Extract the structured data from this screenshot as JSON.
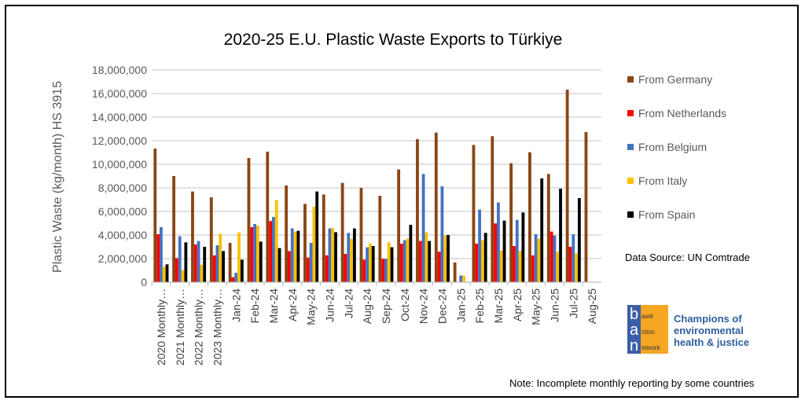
{
  "chart_data": {
    "type": "bar",
    "title": "2020-25 E.U. Plastic Waste Exports to Türkiye",
    "ylabel": "Plastic Waste (kg/month) HS 3915",
    "xlabel": "",
    "ylim": [
      0,
      18000000
    ],
    "yticks": [
      "0",
      "2,000,000",
      "4,000,000",
      "6,000,000",
      "8,000,000",
      "10,000,000",
      "12,000,000",
      "14,000,000",
      "16,000,000",
      "18,000,000"
    ],
    "grid": true,
    "legend_position": "right",
    "categories": [
      "2020 Monthly…",
      "2021 Monthly…",
      "2022 Monthly…",
      "2023 Monthly…",
      "Jan-24",
      "Feb-24",
      "Mar-24",
      "Apr-24",
      "May-24",
      "Jun-24",
      "Jul-24",
      "Aug-24",
      "Sep-24",
      "Oct-24",
      "Nov-24",
      "Dec-24",
      "Jan-25",
      "Feb-25",
      "Mar-25",
      "Apr-25",
      "May-25",
      "Jun-25",
      "Jul-25",
      "Aug-25"
    ],
    "series": [
      {
        "name": "From Germany",
        "color": "#8B4513",
        "values": [
          11330000,
          9000000,
          7690000,
          7200000,
          3330000,
          10530000,
          11070000,
          8200000,
          6640000,
          7440000,
          8420000,
          8000000,
          7330000,
          9560000,
          12130000,
          12690000,
          1670000,
          11640000,
          12380000,
          10090000,
          11020000,
          9180000,
          16330000,
          12730000
        ]
      },
      {
        "name": "From Netherlands",
        "color": "#FF0000",
        "values": [
          4070000,
          2040000,
          3200000,
          2270000,
          420000,
          4670000,
          5180000,
          2640000,
          2090000,
          2270000,
          2400000,
          1910000,
          1980000,
          3270000,
          3490000,
          2580000,
          0,
          3270000,
          4980000,
          3070000,
          2270000,
          4290000,
          3000000,
          0
        ]
      },
      {
        "name": "From Belgium",
        "color": "#4472C4",
        "values": [
          4670000,
          3890000,
          3490000,
          3130000,
          800000,
          4930000,
          5530000,
          4560000,
          3330000,
          4560000,
          4180000,
          2960000,
          1980000,
          3560000,
          9180000,
          8130000,
          560000,
          6160000,
          6760000,
          5290000,
          4070000,
          3960000,
          4070000,
          0
        ]
      },
      {
        "name": "From Italy",
        "color": "#FFC000",
        "values": [
          1330000,
          1020000,
          1470000,
          4110000,
          4220000,
          4800000,
          6960000,
          4290000,
          6400000,
          4620000,
          3690000,
          3290000,
          3380000,
          3690000,
          4220000,
          3960000,
          560000,
          3560000,
          2690000,
          2640000,
          3690000,
          2580000,
          2440000,
          0
        ]
      },
      {
        "name": "From Spain",
        "color": "#000000",
        "values": [
          1510000,
          3380000,
          3000000,
          2640000,
          1910000,
          3440000,
          2890000,
          4360000,
          7690000,
          4240000,
          4560000,
          3070000,
          2960000,
          4870000,
          3490000,
          4000000,
          0,
          4180000,
          5220000,
          5910000,
          8800000,
          7930000,
          7130000,
          0
        ]
      }
    ]
  },
  "source": "Data Source: UN Comtrade",
  "note": "Note: Incomplete monthly reporting by some countries",
  "logo": {
    "letters": [
      "b",
      "a",
      "n"
    ],
    "words": [
      "asel",
      "ction",
      "etwork"
    ],
    "tagline": [
      "Champions of",
      "environmental",
      "health & justice"
    ]
  }
}
